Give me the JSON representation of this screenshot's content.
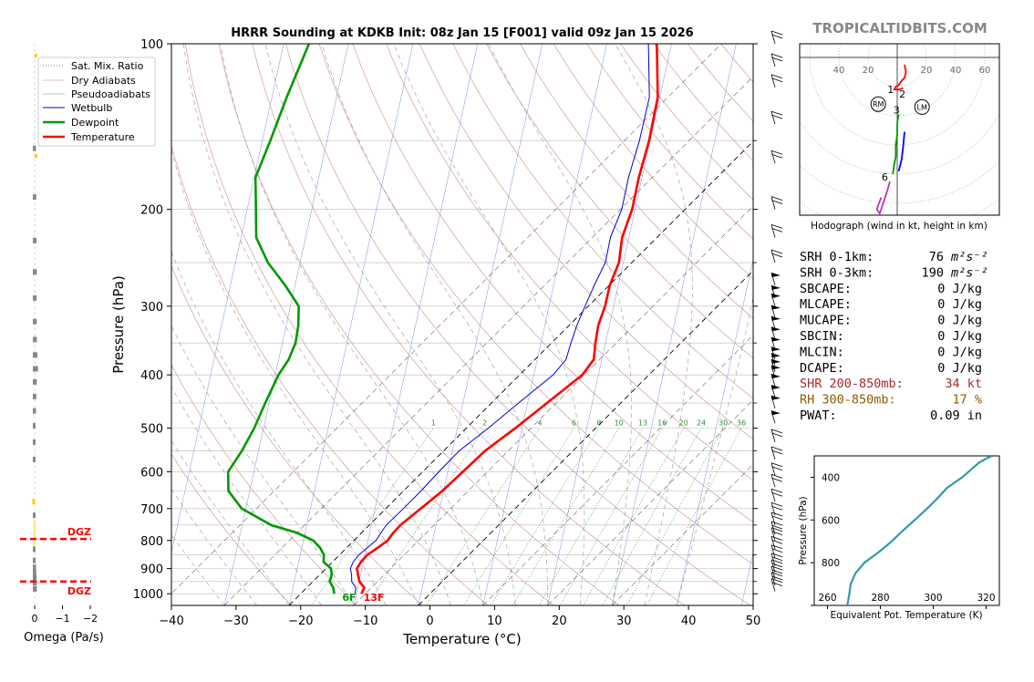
{
  "title": "HRRR Sounding at KDKB Init: 08z Jan 15 [F001] valid 09z Jan 15 2026",
  "brand": "TROPICALTIDBITS.COM",
  "legend": [
    "Sat. Mix. Ratio",
    "Dry Adiabats",
    "Pseudoadiabats",
    "Wetbulb",
    "Dewpoint",
    "Temperature"
  ],
  "surface_labels": {
    "dewpoint": "6F",
    "temperature": "13F"
  },
  "colors": {
    "temperature": "#ff0000",
    "dewpoint": "#009900",
    "wetbulb": "#0000cc",
    "theta_e": "#3399aa",
    "dgz": "#ff0000",
    "brand": "#888888"
  },
  "omega": {
    "xlabel": "Omega (Pa/s)",
    "ticks": [
      "0",
      "−1",
      "−2"
    ],
    "dgz_label": "DGZ",
    "dgz_top_hpa": 795,
    "dgz_bottom_hpa": 950
  },
  "indices": [
    {
      "label": "SRH 0-1km:",
      "value": "76",
      "unit": "m²s⁻²",
      "color": "#000000"
    },
    {
      "label": "SRH 0-3km:",
      "value": "190",
      "unit": "m²s⁻²",
      "color": "#000000"
    },
    {
      "label": "SBCAPE:",
      "value": "0 J/kg",
      "unit": "",
      "color": "#000000"
    },
    {
      "label": "MLCAPE:",
      "value": "0 J/kg",
      "unit": "",
      "color": "#000000"
    },
    {
      "label": "MUCAPE:",
      "value": "0 J/kg",
      "unit": "",
      "color": "#000000"
    },
    {
      "label": "SBCIN:",
      "value": "0 J/kg",
      "unit": "",
      "color": "#000000"
    },
    {
      "label": "MLCIN:",
      "value": "0 J/kg",
      "unit": "",
      "color": "#000000"
    },
    {
      "label": "DCAPE:",
      "value": "0 J/kg",
      "unit": "",
      "color": "#000000"
    },
    {
      "label": "SHR 200-850mb:",
      "value": "34 kt",
      "unit": "",
      "color": "#a52a2a"
    },
    {
      "label": "RH 300-850mb:",
      "value": "17 %",
      "unit": "",
      "color": "#8b5a00"
    },
    {
      "label": "PWAT:",
      "value": "0.09 in",
      "unit": "",
      "color": "#000000"
    }
  ],
  "hodograph": {
    "caption": "Hodograph (wind in kt, height in km)",
    "ticks": [
      "40",
      "20",
      "20",
      "40",
      "60"
    ],
    "height_labels": [
      "1",
      "2",
      "3",
      "6"
    ],
    "storm_markers": [
      "RM",
      "LM"
    ]
  },
  "chart_data": [
    {
      "type": "line",
      "title": "HRRR Sounding at KDKB Init: 08z Jan 15 [F001] valid 09z Jan 15 2026",
      "xlabel": "Temperature (°C)",
      "ylabel": "Pressure (hPa)",
      "xlim": [
        -40,
        50
      ],
      "ylim": [
        1050,
        100
      ],
      "y_scale": "log",
      "x_ticks": [
        "−40",
        "−30",
        "−20",
        "−10",
        "0",
        "10",
        "20",
        "30",
        "40",
        "50"
      ],
      "y_ticks": [
        "100",
        "200",
        "300",
        "400",
        "500",
        "600",
        "700",
        "800",
        "900",
        "1000"
      ],
      "mixing_ratio_labels": [
        "1",
        "2",
        "4",
        "6",
        "8",
        "10",
        "13",
        "16",
        "20",
        "24",
        "30",
        "36"
      ],
      "legend_placement": "upper-left",
      "series": [
        {
          "name": "Temperature",
          "p": [
            1000,
            975,
            950,
            925,
            900,
            875,
            850,
            825,
            800,
            775,
            750,
            700,
            650,
            600,
            550,
            500,
            450,
            400,
            375,
            350,
            325,
            300,
            275,
            250,
            225,
            200,
            175,
            150,
            125,
            100
          ],
          "t": [
            -10.6,
            -11.1,
            -12.8,
            -14.0,
            -15.2,
            -15.6,
            -15.7,
            -15.2,
            -14.8,
            -15.1,
            -15.2,
            -14.6,
            -14.0,
            -13.8,
            -13.6,
            -12.4,
            -11.4,
            -10.3,
            -10.9,
            -13.2,
            -15.5,
            -17.4,
            -19.9,
            -22.0,
            -25.4,
            -28.2,
            -32.1,
            -36.2,
            -41.6,
            -50.0
          ]
        },
        {
          "name": "Dewpoint",
          "p": [
            1000,
            975,
            950,
            925,
            900,
            875,
            850,
            825,
            800,
            775,
            750,
            700,
            650,
            600,
            550,
            500,
            450,
            400,
            375,
            350,
            325,
            300,
            275,
            250,
            225,
            200,
            175,
            150,
            125,
            100
          ],
          "t": [
            -14.8,
            -15.9,
            -17.4,
            -18.1,
            -19.2,
            -21.4,
            -22.4,
            -24.1,
            -26.3,
            -30.0,
            -35.2,
            -42.3,
            -47.1,
            -50.1,
            -51.2,
            -52.8,
            -55.0,
            -57.3,
            -58.1,
            -59.6,
            -61.9,
            -64.8,
            -70.1,
            -76.3,
            -82.0,
            -86.4,
            -91.4,
            -94.8,
            -99.0,
            -103.8
          ]
        },
        {
          "name": "Wetbulb",
          "p": [
            1000,
            975,
            950,
            925,
            900,
            875,
            850,
            825,
            800,
            775,
            750,
            700,
            650,
            600,
            550,
            500,
            450,
            400,
            375,
            350,
            325,
            300,
            275,
            250,
            225,
            200,
            175,
            150,
            125,
            100
          ],
          "t": [
            -11.6,
            -12.4,
            -14.0,
            -15.0,
            -16.2,
            -16.8,
            -17.0,
            -16.8,
            -16.6,
            -17.0,
            -17.4,
            -17.3,
            -17.3,
            -17.5,
            -17.6,
            -16.6,
            -15.8,
            -14.8,
            -15.2,
            -17.0,
            -18.8,
            -20.5,
            -22.3,
            -24.1,
            -27.2,
            -29.8,
            -33.7,
            -37.7,
            -42.9,
            -51.3
          ]
        }
      ]
    },
    {
      "type": "line",
      "xlabel": "Equivalent Pot. Temperature (K)",
      "ylabel": "Pressure (hPa)",
      "xlim": [
        255,
        325
      ],
      "ylim": [
        1000,
        300
      ],
      "x_ticks": [
        "260",
        "280",
        "300",
        "320"
      ],
      "y_ticks": [
        "400",
        "600",
        "800"
      ],
      "series": [
        {
          "p": [
            1000,
            950,
            900,
            850,
            800,
            750,
            700,
            650,
            600,
            550,
            500,
            450,
            400,
            350,
            330,
            310,
            300
          ],
          "theta_e": [
            267.5,
            268.2,
            268.8,
            270.5,
            274.0,
            279.5,
            284.3,
            288.5,
            293.0,
            297.4,
            301.5,
            305.2,
            311.0,
            315.6,
            317.5,
            320.5,
            322.2
          ]
        }
      ]
    },
    {
      "type": "bar",
      "xlabel": "Omega (Pa/s)",
      "xlim": [
        0.4,
        -2.3
      ],
      "p": [
        155,
        190,
        228,
        260,
        290,
        320,
        345,
        368,
        390,
        412,
        438,
        465,
        495,
        530,
        570,
        680,
        720,
        830,
        870,
        895,
        915,
        935,
        955,
        980
      ],
      "values": [
        -0.05,
        -0.06,
        -0.07,
        -0.08,
        -0.07,
        -0.08,
        -0.08,
        -0.1,
        -0.12,
        -0.08,
        -0.06,
        -0.05,
        -0.03,
        -0.01,
        -0.01,
        0.02,
        -0.02,
        -0.03,
        -0.04,
        -0.05,
        -0.06,
        -0.07,
        -0.08,
        -0.08
      ]
    }
  ]
}
